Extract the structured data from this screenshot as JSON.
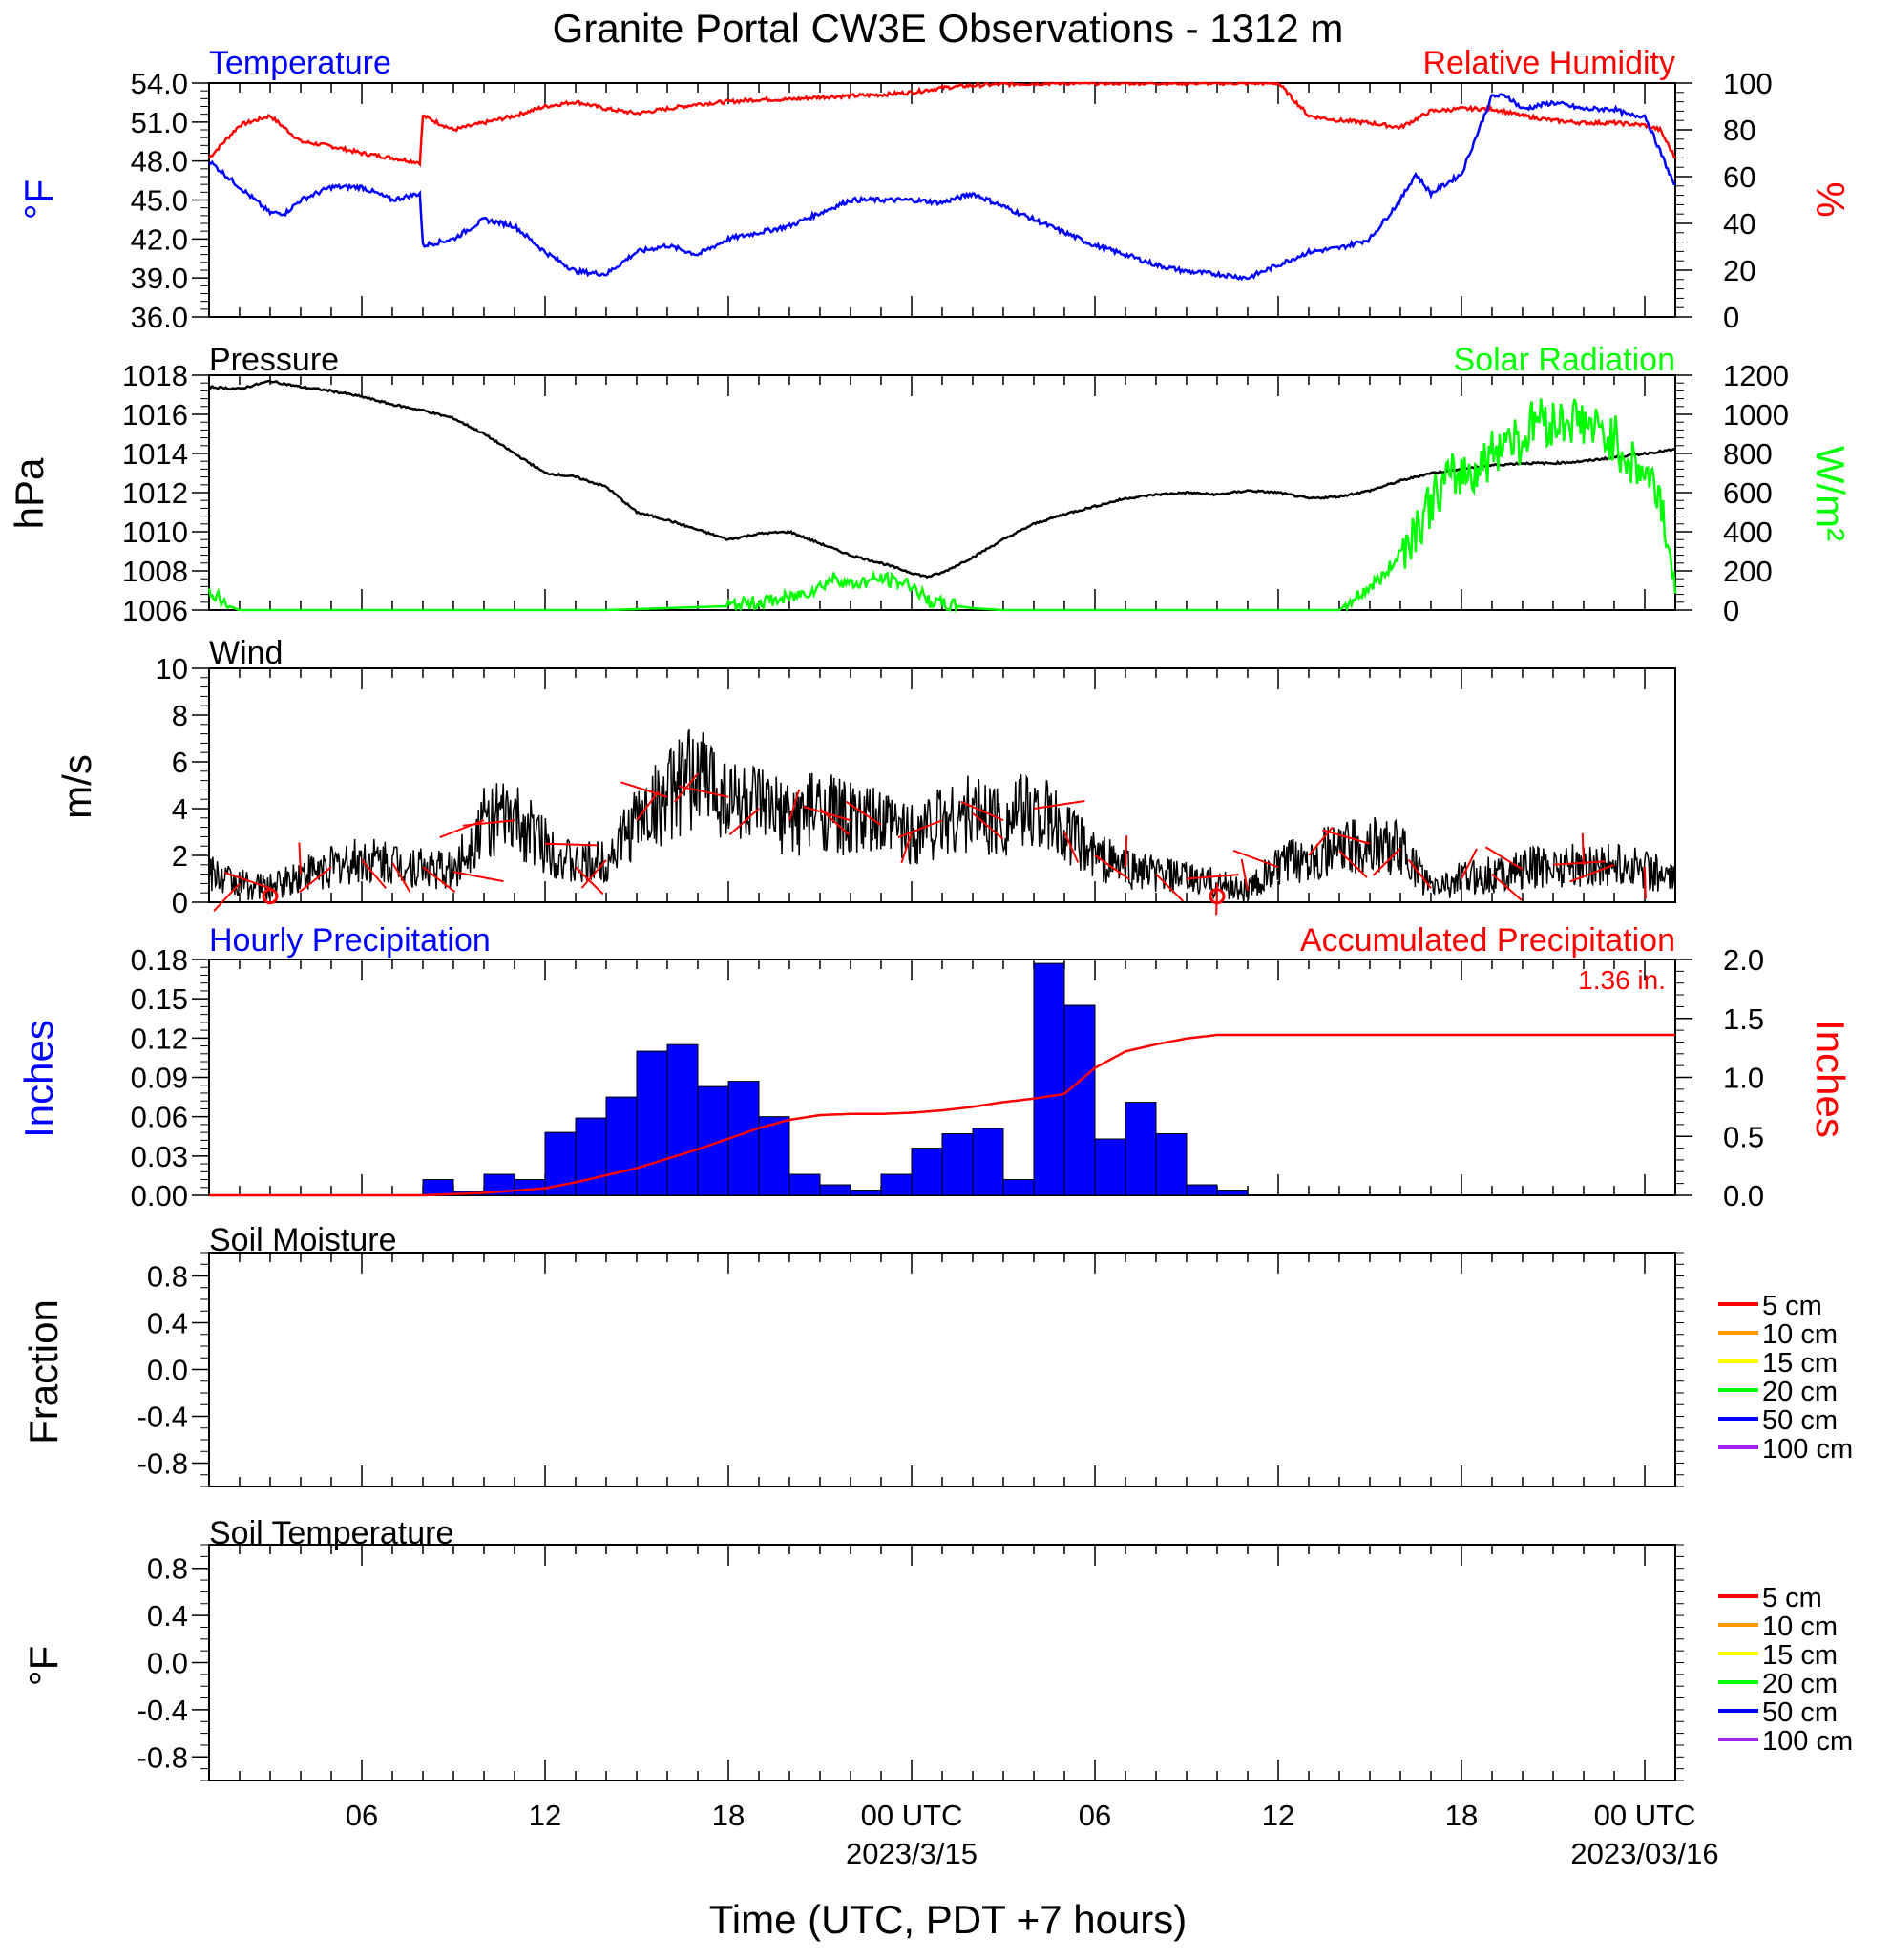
{
  "title": "Granite Portal CW3E Observations - 1312 m",
  "colors": {
    "temperature": "#0000ff",
    "humidity": "#ff0000",
    "pressure": "#000000",
    "solar": "#00ff00",
    "wind": "#000000",
    "wind_barb": "#ff0000",
    "hourly_precip": "#0000ff",
    "accum_precip": "#ff0000"
  },
  "xaxis": {
    "ticks": [
      {
        "h": 6,
        "label": "06"
      },
      {
        "h": 12,
        "label": "12"
      },
      {
        "h": 18,
        "label": "18"
      },
      {
        "h": 24,
        "label": "00 UTC",
        "sub": "2023/3/15"
      },
      {
        "h": 30,
        "label": "06"
      },
      {
        "h": 36,
        "label": "12"
      },
      {
        "h": 42,
        "label": "18"
      },
      {
        "h": 48,
        "label": "00 UTC",
        "sub": "2023/03/16"
      }
    ],
    "range": [
      1,
      49
    ],
    "xlabel": "Time (UTC, PDT +7 hours)"
  },
  "panels": {
    "temp_rh": {
      "left_title": "Temperature",
      "right_title": "Relative Humidity",
      "left_unit": "°F",
      "right_unit": "%"
    },
    "pressure_solar": {
      "left_title": "Pressure",
      "right_title": "Solar Radiation",
      "left_unit": "hPa",
      "right_unit": "W/m²"
    },
    "wind": {
      "left_title": "Wind",
      "left_unit": "m/s"
    },
    "precip": {
      "left_title": "Hourly Precipitation",
      "right_title": "Accumulated Precipitation",
      "left_unit": "Inches",
      "right_unit": "Inches",
      "total_label": "1.36 in."
    },
    "soil_moisture": {
      "left_title": "Soil Moisture",
      "left_unit": "Fraction"
    },
    "soil_temp": {
      "left_title": "Soil Temperature",
      "left_unit": "°F"
    }
  },
  "soil_legend": [
    {
      "label": "5 cm",
      "color": "#ff0000"
    },
    {
      "label": "10 cm",
      "color": "#ff9900"
    },
    {
      "label": "15 cm",
      "color": "#ffff00"
    },
    {
      "label": "20 cm",
      "color": "#00ff00"
    },
    {
      "label": "50 cm",
      "color": "#0000ff"
    },
    {
      "label": "100 cm",
      "color": "#a020f0"
    }
  ],
  "chart_data": [
    {
      "type": "line",
      "title": "Temperature / Relative Humidity",
      "x_unit": "hours since 2023-03-14 00 UTC",
      "series": [
        {
          "name": "Temperature",
          "axis": "left",
          "x": [
            1,
            2,
            3,
            3.5,
            4,
            5,
            6,
            7,
            7.9,
            8,
            9,
            10,
            11,
            12,
            13,
            14,
            15,
            16,
            17,
            18,
            19,
            20,
            21,
            22,
            23,
            24,
            25,
            26,
            27,
            28,
            29,
            30,
            31,
            32,
            33,
            34,
            35,
            36,
            37,
            38,
            39,
            40,
            40.5,
            41,
            42,
            43,
            43.5,
            44,
            45,
            46,
            47,
            47.5,
            48,
            49
          ],
          "y": [
            48,
            46,
            44,
            44,
            45,
            46,
            46,
            45,
            45.5,
            41.5,
            42,
            43.5,
            43,
            41,
            39.5,
            39.3,
            41,
            41.5,
            40.8,
            42,
            42.5,
            43,
            44,
            45,
            45,
            45,
            44.8,
            45.5,
            44.5,
            43.5,
            42.5,
            41.5,
            40.8,
            40,
            39.5,
            39.3,
            39,
            40,
            41,
            41.3,
            42,
            45,
            47,
            45.5,
            47,
            53,
            53,
            52,
            52.5,
            52,
            52,
            51.5,
            51.5,
            46
          ]
        },
        {
          "name": "Relative Humidity",
          "axis": "right",
          "x": [
            1,
            2,
            3,
            4,
            5,
            6,
            7,
            7.9,
            8,
            9,
            10,
            11,
            12,
            13,
            14,
            15,
            16,
            17,
            18,
            19,
            20,
            21,
            22,
            23,
            24,
            25,
            26,
            27,
            28,
            29,
            30,
            31,
            32,
            33,
            34,
            35,
            36,
            37,
            38,
            39,
            40,
            41,
            42,
            43,
            44,
            45,
            46,
            47,
            48,
            48.5,
            49
          ],
          "y": [
            68,
            82,
            86,
            75,
            73,
            70,
            68,
            66,
            86,
            80,
            83,
            86,
            90,
            92,
            89,
            87,
            89,
            91,
            92,
            93,
            93,
            94,
            94.5,
            95,
            96,
            98,
            99,
            99.5,
            99.8,
            100,
            100,
            100,
            100,
            100,
            100,
            100,
            100,
            86,
            84,
            83,
            81,
            88,
            89,
            89,
            86,
            84,
            83,
            83,
            82,
            80,
            68
          ]
        }
      ],
      "ylim_left": [
        36,
        54
      ],
      "ylim_right": [
        0,
        100
      ],
      "ylabel_left": "°F",
      "ylabel_right": "%"
    },
    {
      "type": "line",
      "title": "Pressure / Solar Radiation",
      "series": [
        {
          "name": "Pressure",
          "axis": "left",
          "x": [
            1,
            2,
            3,
            4,
            5,
            6,
            7,
            8,
            9,
            10,
            11,
            12,
            13,
            14,
            15,
            16,
            17,
            18,
            19,
            20,
            21,
            22,
            23,
            24,
            24.5,
            25,
            26,
            27,
            28,
            29,
            30,
            31,
            32,
            33,
            34,
            35,
            36,
            37,
            38,
            39,
            40,
            41,
            42,
            43,
            44,
            45,
            46,
            47,
            48,
            49
          ],
          "y": [
            1017.4,
            1017.3,
            1017.7,
            1017.4,
            1017.2,
            1016.9,
            1016.5,
            1016.2,
            1015.8,
            1015.0,
            1014.0,
            1013.0,
            1012.8,
            1012.3,
            1011.0,
            1010.6,
            1010.1,
            1009.6,
            1009.9,
            1010.0,
            1009.4,
            1008.8,
            1008.4,
            1007.9,
            1007.7,
            1007.9,
            1008.7,
            1009.6,
            1010.4,
            1010.9,
            1011.3,
            1011.7,
            1011.9,
            1012.0,
            1011.9,
            1012.1,
            1012.0,
            1011.7,
            1011.8,
            1012.1,
            1012.6,
            1013.0,
            1013.2,
            1013.4,
            1013.5,
            1013.5,
            1013.6,
            1013.8,
            1014.0,
            1014.2
          ]
        },
        {
          "name": "Solar Radiation",
          "axis": "right",
          "x": [
            1,
            1.5,
            2,
            14,
            16,
            18,
            19,
            20,
            21,
            21.5,
            22,
            23,
            24,
            24.5,
            25,
            26,
            27,
            38,
            38.5,
            39,
            39.5,
            40,
            40.5,
            41,
            41.5,
            42,
            42.5,
            43,
            43.5,
            44,
            44.5,
            45,
            45.5,
            46,
            46.5,
            47,
            47.5,
            48,
            48.5,
            49
          ],
          "y": [
            110,
            30,
            0,
            0,
            10,
            20,
            40,
            60,
            120,
            170,
            130,
            160,
            130,
            50,
            30,
            10,
            0,
            0,
            60,
            120,
            180,
            300,
            420,
            550,
            650,
            700,
            720,
            800,
            900,
            860,
            1000,
            950,
            980,
            960,
            900,
            880,
            760,
            700,
            600,
            100
          ]
        }
      ],
      "ylim_left": [
        1006,
        1018
      ],
      "ylim_right": [
        0,
        1200
      ],
      "ylabel_left": "hPa",
      "ylabel_right": "W/m²"
    },
    {
      "type": "line",
      "title": "Wind",
      "series": [
        {
          "name": "Wind speed",
          "x": [
            1,
            2,
            3,
            4,
            5,
            6,
            7,
            8,
            9,
            10,
            11,
            12,
            13,
            14,
            15,
            16,
            17,
            18,
            19,
            20,
            21,
            22,
            23,
            24,
            25,
            26,
            27,
            28,
            29,
            30,
            31,
            32,
            33,
            34,
            35,
            36,
            37,
            38,
            39,
            40,
            41,
            42,
            43,
            44,
            45,
            46,
            47,
            48,
            49
          ],
          "y": [
            1.2,
            0.8,
            0.6,
            1.2,
            1.5,
            1.8,
            1.7,
            1.5,
            1.3,
            3.5,
            3.5,
            2.5,
            1.5,
            1.8,
            3.5,
            4.5,
            5.5,
            4.5,
            4.0,
            3.5,
            4.0,
            3.5,
            3.3,
            3.0,
            3.5,
            3.8,
            3.5,
            4.0,
            3.0,
            2.0,
            1.5,
            1.2,
            1.0,
            0.8,
            0.5,
            1.5,
            2.0,
            2.2,
            2.5,
            2.3,
            0.6,
            1.0,
            1.2,
            1.4,
            1.6,
            1.6,
            1.6,
            1.5,
            0.8
          ]
        }
      ],
      "ylim": [
        0,
        10
      ],
      "ylabel": "m/s"
    },
    {
      "type": "bar",
      "title": "Hourly / Accumulated Precipitation",
      "series": [
        {
          "name": "Hourly Precipitation",
          "axis": "left",
          "x": [
            8.5,
            9.5,
            10.5,
            11.5,
            12.5,
            13.5,
            14.5,
            15.5,
            16.5,
            17.5,
            18.5,
            19.5,
            20.5,
            21.5,
            22.5,
            23.5,
            24.5,
            25.5,
            26.5,
            27.5,
            28.5,
            29.5,
            30.5,
            31.5,
            32.5,
            33.5,
            34.5,
            35.5
          ],
          "y": [
            0.012,
            0.003,
            0.016,
            0.012,
            0.048,
            0.059,
            0.075,
            0.11,
            0.115,
            0.083,
            0.087,
            0.06,
            0.016,
            0.008,
            0.004,
            0.016,
            0.036,
            0.047,
            0.051,
            0.012,
            0.177,
            0.145,
            0.043,
            0.071,
            0.047,
            0.008,
            0.004,
            0.0
          ]
        },
        {
          "name": "Accumulated Precipitation",
          "axis": "right",
          "type": "line",
          "x": [
            1,
            8,
            9,
            10,
            11,
            12,
            13,
            14,
            15,
            16,
            17,
            18,
            19,
            20,
            21,
            22,
            23,
            24,
            25,
            26,
            27,
            28,
            29,
            30,
            31,
            32,
            33,
            34,
            35,
            36,
            49
          ],
          "y": [
            0,
            0,
            0.01,
            0.02,
            0.04,
            0.06,
            0.11,
            0.17,
            0.23,
            0.31,
            0.39,
            0.48,
            0.57,
            0.64,
            0.68,
            0.69,
            0.69,
            0.7,
            0.72,
            0.75,
            0.79,
            0.82,
            0.86,
            1.08,
            1.22,
            1.28,
            1.33,
            1.36,
            1.36,
            1.36,
            1.36
          ]
        }
      ],
      "ylim_left": [
        0,
        0.18
      ],
      "ylim_right": [
        0,
        2.0
      ],
      "ylabel_left": "Inches",
      "ylabel_right": "Inches"
    },
    {
      "type": "line",
      "title": "Soil Moisture",
      "series": [],
      "ylim": [
        -1,
        1
      ],
      "ylabel": "Fraction"
    },
    {
      "type": "line",
      "title": "Soil Temperature",
      "series": [],
      "ylim": [
        -1,
        1
      ],
      "ylabel": "°F"
    }
  ]
}
